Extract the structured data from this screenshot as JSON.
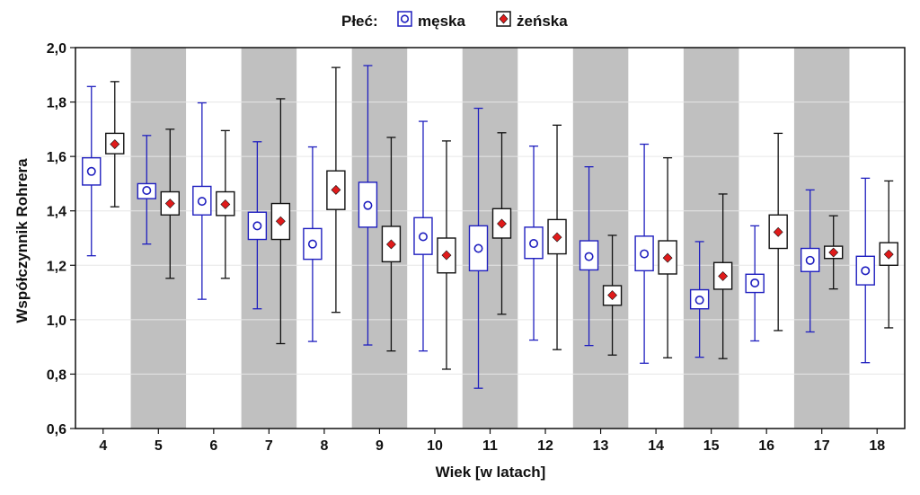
{
  "chart_data": {
    "type": "boxplot",
    "xlabel": "Wiek [w latach]",
    "ylabel": "Współczynnik Rohrera",
    "ylim": [
      0.6,
      2.0
    ],
    "yticks": [
      "0,6",
      "0,8",
      "1,0",
      "1,2",
      "1,4",
      "1,6",
      "1,8",
      "2,0"
    ],
    "yticks_values": [
      0.6,
      0.8,
      1.0,
      1.2,
      1.4,
      1.6,
      1.8,
      2.0
    ],
    "grid": true,
    "legend_title": "Płeć:",
    "legend_position": "top",
    "categories": [
      "4",
      "5",
      "6",
      "7",
      "8",
      "9",
      "10",
      "11",
      "12",
      "13",
      "14",
      "15",
      "16",
      "17",
      "18"
    ],
    "shaded_categories": [
      "5",
      "7",
      "9",
      "11",
      "13",
      "15",
      "17"
    ],
    "colors": {
      "male": "#1f1fbf",
      "female": "#111111",
      "female_marker": "#e01b1b",
      "shade": "#c0c0c0",
      "grid": "#e6e6e6"
    },
    "series": [
      {
        "name": "męska",
        "marker": "circle",
        "mean": [
          1.545,
          1.475,
          1.435,
          1.345,
          1.278,
          1.42,
          1.305,
          1.262,
          1.28,
          1.232,
          1.242,
          1.072,
          1.135,
          1.218,
          1.18
        ],
        "q1": [
          1.495,
          1.445,
          1.385,
          1.295,
          1.222,
          1.34,
          1.24,
          1.18,
          1.225,
          1.183,
          1.18,
          1.04,
          1.1,
          1.177,
          1.128
        ],
        "q3": [
          1.595,
          1.5,
          1.49,
          1.395,
          1.335,
          1.505,
          1.375,
          1.345,
          1.34,
          1.29,
          1.307,
          1.11,
          1.167,
          1.262,
          1.233
        ],
        "min": [
          1.235,
          1.278,
          1.075,
          1.04,
          0.92,
          0.907,
          0.885,
          0.748,
          0.925,
          0.905,
          0.84,
          0.862,
          0.922,
          0.955,
          0.842
        ],
        "max": [
          1.857,
          1.677,
          1.797,
          1.654,
          1.635,
          1.934,
          1.729,
          1.777,
          1.638,
          1.562,
          1.645,
          1.287,
          1.345,
          1.477,
          1.52
        ]
      },
      {
        "name": "żeńska",
        "marker": "diamond",
        "mean": [
          1.645,
          1.427,
          1.424,
          1.362,
          1.477,
          1.277,
          1.237,
          1.353,
          1.303,
          1.09,
          1.227,
          1.16,
          1.322,
          1.247,
          1.24
        ],
        "q1": [
          1.61,
          1.385,
          1.383,
          1.295,
          1.405,
          1.213,
          1.172,
          1.3,
          1.242,
          1.053,
          1.168,
          1.112,
          1.262,
          1.225,
          1.2
        ],
        "q3": [
          1.685,
          1.47,
          1.47,
          1.427,
          1.547,
          1.343,
          1.3,
          1.408,
          1.368,
          1.125,
          1.29,
          1.21,
          1.385,
          1.27,
          1.283
        ],
        "min": [
          1.415,
          1.152,
          1.152,
          0.912,
          1.027,
          0.885,
          0.818,
          1.02,
          0.89,
          0.87,
          0.86,
          0.857,
          0.96,
          1.113,
          0.97
        ],
        "max": [
          1.875,
          1.7,
          1.695,
          1.812,
          1.927,
          1.67,
          1.657,
          1.687,
          1.715,
          1.31,
          1.595,
          1.462,
          1.685,
          1.382,
          1.51
        ]
      }
    ]
  }
}
